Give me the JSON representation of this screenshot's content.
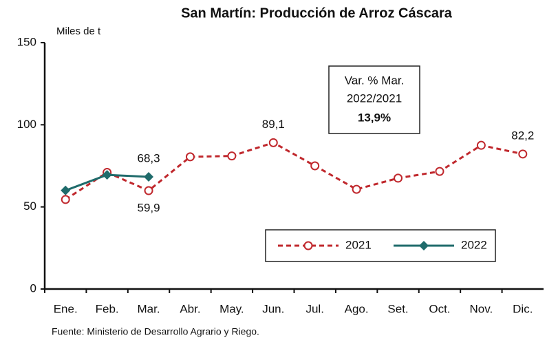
{
  "chart_data": {
    "type": "line",
    "title": "San Martín: Producción de Arroz Cáscara",
    "y_axis_label": "Miles de  t",
    "categories": [
      "Ene.",
      "Feb.",
      "Mar.",
      "Abr.",
      "May.",
      "Jun.",
      "Jul.",
      "Ago.",
      "Set.",
      "Oct.",
      "Nov.",
      "Dic."
    ],
    "series": [
      {
        "name": "2021",
        "color": "#c0282d",
        "marker": "circle",
        "values": [
          54.5,
          71,
          59.9,
          80.5,
          81,
          89.1,
          75,
          60.7,
          67.5,
          71.6,
          87.5,
          82.2
        ],
        "value_labels": [
          null,
          null,
          "59,9",
          null,
          null,
          "89,1",
          null,
          null,
          null,
          null,
          null,
          "82,2"
        ]
      },
      {
        "name": "2022",
        "color": "#1f6b6b",
        "marker": "diamond",
        "values": [
          60,
          69.5,
          68.3,
          null,
          null,
          null,
          null,
          null,
          null,
          null,
          null,
          null
        ],
        "value_labels": [
          null,
          null,
          "68,3",
          null,
          null,
          null,
          null,
          null,
          null,
          null,
          null,
          null
        ]
      }
    ],
    "ylim": [
      0,
      150
    ],
    "yticks": [
      0,
      50,
      100,
      150
    ],
    "grid": false,
    "annotation": [
      "Var. % Mar.",
      "2022/2021",
      "13,9%"
    ],
    "source": "Fuente: Ministerio de Desarrollo Agrario y Riego."
  }
}
